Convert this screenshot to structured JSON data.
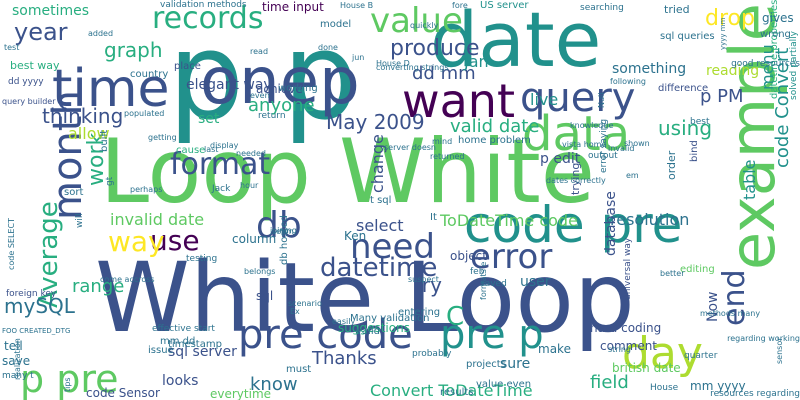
{
  "palette": {
    "purple": "#440154",
    "indigo": "#472d7b",
    "blue": "#3b528b",
    "steel": "#2c728e",
    "teal": "#21918c",
    "green": "#28ae80",
    "lime": "#5ec962",
    "yellow": "#addc30",
    "gold": "#fde725"
  },
  "words": [
    {
      "text": "White Loop"
    },
    {
      "text": "Loop White"
    },
    {
      "text": "p p"
    },
    {
      "text": "date"
    },
    {
      "text": "onep"
    },
    {
      "text": "example"
    },
    {
      "text": "time"
    },
    {
      "text": "code pre"
    },
    {
      "text": "data"
    },
    {
      "text": "want"
    },
    {
      "text": "value"
    },
    {
      "text": "records"
    },
    {
      "text": "query"
    },
    {
      "text": "pre code"
    },
    {
      "text": "pre p"
    },
    {
      "text": "p pre"
    },
    {
      "text": "day"
    },
    {
      "text": "month"
    },
    {
      "text": "db"
    },
    {
      "text": "error"
    },
    {
      "text": "need"
    },
    {
      "text": "use"
    },
    {
      "text": "way"
    },
    {
      "text": "format"
    },
    {
      "text": "Average"
    },
    {
      "text": "end"
    },
    {
      "text": "datetime"
    },
    {
      "text": "year"
    },
    {
      "text": "graph"
    },
    {
      "text": "drop"
    },
    {
      "text": "produce"
    },
    {
      "text": "dd mm"
    },
    {
      "text": "p PM"
    },
    {
      "text": "thinking"
    },
    {
      "text": "using"
    },
    {
      "text": "work"
    },
    {
      "text": "May 2009"
    },
    {
      "text": "valid date"
    },
    {
      "text": "anyone"
    },
    {
      "text": "mySQL"
    },
    {
      "text": "range"
    },
    {
      "text": "try"
    },
    {
      "text": "Thanks"
    },
    {
      "text": "Convert ToDateTime"
    },
    {
      "text": "field"
    },
    {
      "text": "know"
    },
    {
      "text": "code Convert"
    },
    {
      "text": "menu"
    },
    {
      "text": "table"
    },
    {
      "text": "invalid date"
    },
    {
      "text": "live"
    },
    {
      "text": "reading"
    },
    {
      "text": "sometimes"
    },
    {
      "text": "ToDateTime code"
    },
    {
      "text": "resolution"
    },
    {
      "text": "select"
    },
    {
      "text": "change"
    },
    {
      "text": "allow"
    },
    {
      "text": "time input"
    },
    {
      "text": "validation methods"
    },
    {
      "text": "US server"
    },
    {
      "text": "searching"
    },
    {
      "text": "tried"
    },
    {
      "text": "Jan"
    },
    {
      "text": "something"
    },
    {
      "text": "elegant way"
    },
    {
      "text": "achieve"
    },
    {
      "text": "difference"
    },
    {
      "text": "datetime properties"
    },
    {
      "text": "p edit"
    },
    {
      "text": "sql server"
    },
    {
      "text": "looks"
    },
    {
      "text": "hard coding"
    },
    {
      "text": "database"
    },
    {
      "text": "universal way"
    },
    {
      "text": "Now"
    },
    {
      "text": "mm yyyy"
    },
    {
      "text": "british date"
    },
    {
      "text": "code Sensor"
    },
    {
      "text": "everytime"
    },
    {
      "text": "suggestions"
    },
    {
      "text": "Many validation"
    },
    {
      "text": "sql queries"
    },
    {
      "text": "gives"
    },
    {
      "text": "wrong"
    },
    {
      "text": "good resources"
    },
    {
      "text": "solved partially"
    },
    {
      "text": "user"
    },
    {
      "text": "editing"
    },
    {
      "text": "sure"
    },
    {
      "text": "comment"
    },
    {
      "text": "make"
    },
    {
      "text": "projects"
    },
    {
      "text": "C"
    },
    {
      "text": "sql"
    },
    {
      "text": "timestamp"
    },
    {
      "text": "column"
    },
    {
      "text": "object"
    },
    {
      "text": "issue"
    },
    {
      "text": "cause"
    },
    {
      "text": "set"
    },
    {
      "text": "place"
    },
    {
      "text": "country"
    },
    {
      "text": "best way"
    },
    {
      "text": "dd yyyy"
    },
    {
      "text": "query builder"
    },
    {
      "text": "code SELECT"
    },
    {
      "text": "foreign key"
    },
    {
      "text": "FOO CREATED_DTG"
    },
    {
      "text": "tell"
    },
    {
      "text": "save"
    },
    {
      "text": "many t"
    },
    {
      "text": "tips"
    },
    {
      "text": "Jack"
    },
    {
      "text": "Ken"
    },
    {
      "text": "t sql"
    },
    {
      "text": "db hosted"
    },
    {
      "text": "It"
    },
    {
      "text": "order"
    },
    {
      "text": "bind"
    },
    {
      "text": "trying"
    },
    {
      "text": "error saying"
    },
    {
      "text": "vista home"
    },
    {
      "text": "working"
    },
    {
      "text": "model"
    },
    {
      "text": "House B"
    },
    {
      "text": "House D"
    },
    {
      "text": "converting strings"
    },
    {
      "text": "following"
    },
    {
      "text": "return"
    },
    {
      "text": "getting"
    },
    {
      "text": "built"
    },
    {
      "text": "gt"
    },
    {
      "text": "sort"
    },
    {
      "text": "will"
    },
    {
      "text": "come accross"
    },
    {
      "text": "testing"
    },
    {
      "text": "belongs"
    },
    {
      "text": "seem"
    },
    {
      "text": "valid"
    },
    {
      "text": "entering"
    },
    {
      "text": "probably"
    },
    {
      "text": "feb"
    },
    {
      "text": "saved"
    },
    {
      "text": "better"
    },
    {
      "text": "methods many"
    },
    {
      "text": "regarding working"
    },
    {
      "text": "resources regarding"
    },
    {
      "text": "results"
    },
    {
      "text": "value even"
    },
    {
      "text": "string"
    },
    {
      "text": "House"
    },
    {
      "text": "effective start"
    },
    {
      "text": "must"
    },
    {
      "text": "mm dd"
    },
    {
      "text": "sensor"
    },
    {
      "text": "dates correctly"
    },
    {
      "text": "output"
    },
    {
      "text": "invalid"
    },
    {
      "text": "shown"
    },
    {
      "text": "quarter"
    },
    {
      "text": "home problem"
    },
    {
      "text": "em"
    },
    {
      "text": "best"
    },
    {
      "text": "yyyy mm"
    },
    {
      "text": "knowledge"
    },
    {
      "text": "even"
    },
    {
      "text": "done"
    },
    {
      "text": "jun"
    },
    {
      "text": "returned"
    },
    {
      "text": "server doesn"
    },
    {
      "text": "needed"
    },
    {
      "text": "last"
    },
    {
      "text": "mind"
    },
    {
      "text": "hour"
    },
    {
      "text": "suspect"
    },
    {
      "text": "formats e"
    },
    {
      "text": "scenario"
    },
    {
      "text": "Ex"
    },
    {
      "text": "easily"
    },
    {
      "text": "joining"
    },
    {
      "text": "test"
    },
    {
      "text": "added"
    },
    {
      "text": "perhaps"
    },
    {
      "text": "display"
    },
    {
      "text": "populated"
    },
    {
      "text": "realization"
    },
    {
      "text": "Null"
    },
    {
      "text": "fore"
    },
    {
      "text": "quickly"
    },
    {
      "text": "read"
    },
    {
      "text": "displayed"
    },
    {
      "text": "new"
    },
    {
      "text": "records"
    }
  ]
}
